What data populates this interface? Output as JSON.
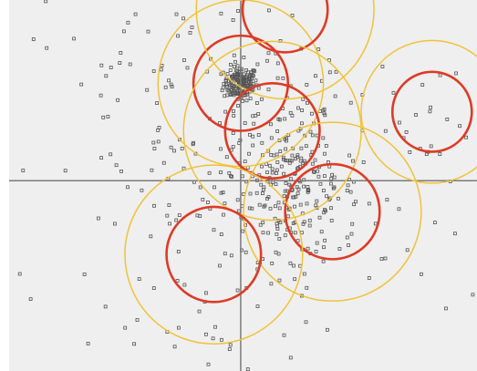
{
  "chart_data": {
    "type": "scatter",
    "title": "",
    "xlabel": "",
    "ylabel": "",
    "xlim": [
      -4.9,
      5.0
    ],
    "ylim": [
      -4.0,
      3.8
    ],
    "grid": false,
    "legend": "none",
    "colors": {
      "background": "#efefef",
      "axes": "#7a7a7a",
      "points": "#555555",
      "outer_circles": "#f0c23a",
      "inner_circles": "#dd3b26"
    },
    "axes_origin": [
      0,
      0
    ],
    "circles": [
      {
        "name": "",
        "center": [
          0.0,
          2.05
        ],
        "outer_radius": 1.75,
        "inner_radius": 1.0
      },
      {
        "name": "",
        "center": [
          0.94,
          3.6
        ],
        "outer_radius": 1.88,
        "inner_radius": 0.9
      },
      {
        "name": "",
        "center": [
          4.05,
          1.45
        ],
        "outer_radius": 1.5,
        "inner_radius": 0.84
      },
      {
        "name": "",
        "center": [
          0.67,
          1.05
        ],
        "outer_radius": 1.88,
        "inner_radius": 1.0
      },
      {
        "name": "",
        "center": [
          1.94,
          -0.65
        ],
        "outer_radius": 1.88,
        "inner_radius": 1.0
      },
      {
        "name": "",
        "center": [
          -0.57,
          -1.55
        ],
        "outer_radius": 1.88,
        "inner_radius": 1.0
      }
    ],
    "point_clusters": [
      {
        "center": [
          0.0,
          2.05
        ],
        "spread": 0.18,
        "count": 170
      },
      {
        "center": [
          1.1,
          -0.2
        ],
        "spread": 0.72,
        "count": 210
      },
      {
        "center": [
          0.9,
          1.2
        ],
        "spread": 0.7,
        "count": 45
      },
      {
        "center": [
          -1.5,
          1.6
        ],
        "spread": 1.4,
        "count": 40
      },
      {
        "center": [
          4.0,
          1.3
        ],
        "spread": 0.5,
        "count": 15
      },
      {
        "center": [
          -0.4,
          -1.7
        ],
        "spread": 1.3,
        "count": 45
      },
      {
        "center": [
          0.0,
          0.0
        ],
        "spread": 2.6,
        "count": 150
      }
    ]
  }
}
